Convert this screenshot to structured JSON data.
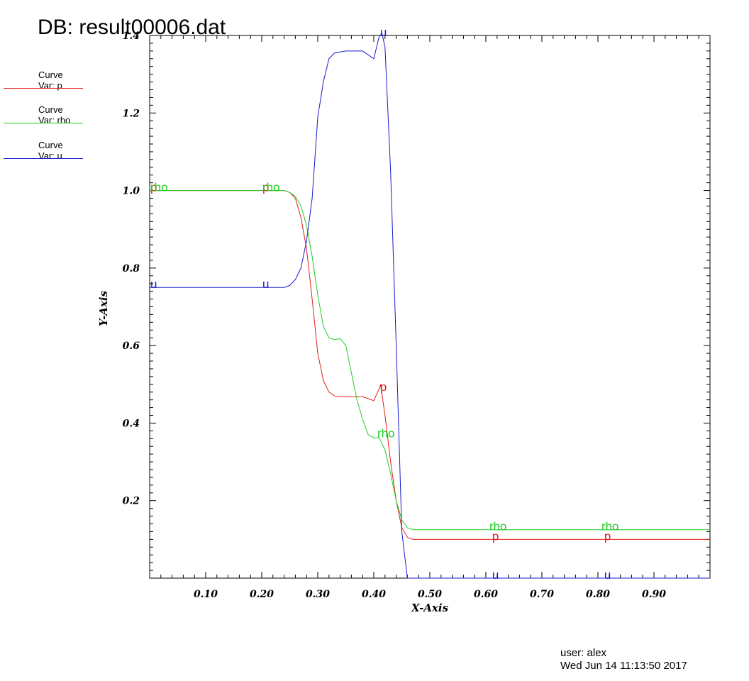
{
  "header": {
    "title": "DB: result00006.dat"
  },
  "legend": [
    {
      "line1": "Curve",
      "line2": "Var: p",
      "color": "#e0201e"
    },
    {
      "line1": "Curve",
      "line2": "Var: rho",
      "color": "#22cc22"
    },
    {
      "line1": "Curve",
      "line2": "Var: u",
      "color": "#1a1acc"
    }
  ],
  "footer": {
    "user": "user: alex",
    "timestamp": "Wed Jun 14 11:13:50 2017"
  },
  "chart_data": {
    "type": "line",
    "title": "DB: result00006.dat",
    "xlabel": "X-Axis",
    "ylabel": "Y-Axis",
    "xlim": [
      0.0,
      1.0
    ],
    "ylim": [
      0.0,
      1.4
    ],
    "x_ticks": [
      0.1,
      0.2,
      0.3,
      0.4,
      0.5,
      0.6,
      0.7,
      0.8,
      0.9
    ],
    "x_tick_labels": [
      "0.10",
      "0.20",
      "0.30",
      "0.40",
      "0.50",
      "0.60",
      "0.70",
      "0.80",
      "0.90"
    ],
    "y_ticks": [
      0.2,
      0.4,
      0.6,
      0.8,
      1.0,
      1.2,
      1.4
    ],
    "y_tick_labels": [
      "0.2",
      "0.4",
      "0.6",
      "0.8",
      "1.0",
      "1.2",
      "1.4"
    ],
    "grid": false,
    "legend_position": "top-left",
    "series": [
      {
        "name": "p",
        "label": "p",
        "color": "#e0201e",
        "points": [
          [
            0.0,
            1.0
          ],
          [
            0.24,
            1.0
          ],
          [
            0.25,
            0.995
          ],
          [
            0.26,
            0.98
          ],
          [
            0.27,
            0.93
          ],
          [
            0.28,
            0.85
          ],
          [
            0.29,
            0.72
          ],
          [
            0.3,
            0.58
          ],
          [
            0.31,
            0.51
          ],
          [
            0.32,
            0.48
          ],
          [
            0.33,
            0.47
          ],
          [
            0.34,
            0.468
          ],
          [
            0.36,
            0.468
          ],
          [
            0.38,
            0.468
          ],
          [
            0.4,
            0.458
          ],
          [
            0.41,
            0.49
          ],
          [
            0.412,
            0.5
          ],
          [
            0.42,
            0.42
          ],
          [
            0.43,
            0.3
          ],
          [
            0.44,
            0.2
          ],
          [
            0.45,
            0.13
          ],
          [
            0.46,
            0.105
          ],
          [
            0.47,
            0.1
          ],
          [
            1.0,
            0.1
          ]
        ],
        "labels_at": [
          [
            0.0,
            1.0
          ],
          [
            0.2,
            1.0
          ],
          [
            0.41,
            0.485
          ],
          [
            0.61,
            0.1
          ],
          [
            0.81,
            0.1
          ]
        ]
      },
      {
        "name": "rho",
        "label": "rho",
        "color": "#22cc22",
        "points": [
          [
            0.0,
            1.0
          ],
          [
            0.24,
            1.0
          ],
          [
            0.25,
            0.995
          ],
          [
            0.26,
            0.985
          ],
          [
            0.27,
            0.96
          ],
          [
            0.28,
            0.91
          ],
          [
            0.29,
            0.83
          ],
          [
            0.3,
            0.73
          ],
          [
            0.31,
            0.65
          ],
          [
            0.32,
            0.62
          ],
          [
            0.33,
            0.615
          ],
          [
            0.34,
            0.618
          ],
          [
            0.35,
            0.6
          ],
          [
            0.36,
            0.53
          ],
          [
            0.37,
            0.46
          ],
          [
            0.38,
            0.41
          ],
          [
            0.39,
            0.37
          ],
          [
            0.4,
            0.362
          ],
          [
            0.41,
            0.362
          ],
          [
            0.42,
            0.33
          ],
          [
            0.43,
            0.27
          ],
          [
            0.44,
            0.2
          ],
          [
            0.45,
            0.15
          ],
          [
            0.46,
            0.13
          ],
          [
            0.47,
            0.125
          ],
          [
            1.0,
            0.125
          ]
        ],
        "labels_at": [
          [
            0.0,
            1.0
          ],
          [
            0.2,
            1.0
          ],
          [
            0.405,
            0.365
          ],
          [
            0.605,
            0.125
          ],
          [
            0.805,
            0.125
          ]
        ]
      },
      {
        "name": "u",
        "label": "u",
        "color": "#1a1acc",
        "points": [
          [
            0.0,
            0.75
          ],
          [
            0.22,
            0.75
          ],
          [
            0.24,
            0.75
          ],
          [
            0.25,
            0.755
          ],
          [
            0.26,
            0.77
          ],
          [
            0.27,
            0.8
          ],
          [
            0.28,
            0.87
          ],
          [
            0.29,
            0.98
          ],
          [
            0.3,
            1.19
          ],
          [
            0.31,
            1.28
          ],
          [
            0.32,
            1.34
          ],
          [
            0.33,
            1.355
          ],
          [
            0.35,
            1.36
          ],
          [
            0.38,
            1.36
          ],
          [
            0.39,
            1.35
          ],
          [
            0.4,
            1.34
          ],
          [
            0.41,
            1.4
          ],
          [
            0.415,
            1.45
          ],
          [
            0.42,
            1.37
          ],
          [
            0.43,
            1.05
          ],
          [
            0.44,
            0.6
          ],
          [
            0.45,
            0.12
          ],
          [
            0.46,
            0.0
          ],
          [
            0.48,
            0.0
          ],
          [
            0.49,
            0.0
          ],
          [
            1.0,
            0.0
          ]
        ],
        "labels_at": [
          [
            0.0,
            0.75
          ],
          [
            0.2,
            0.75
          ],
          [
            0.41,
            1.4
          ],
          [
            0.61,
            0.0
          ],
          [
            0.81,
            0.0
          ]
        ]
      }
    ]
  }
}
